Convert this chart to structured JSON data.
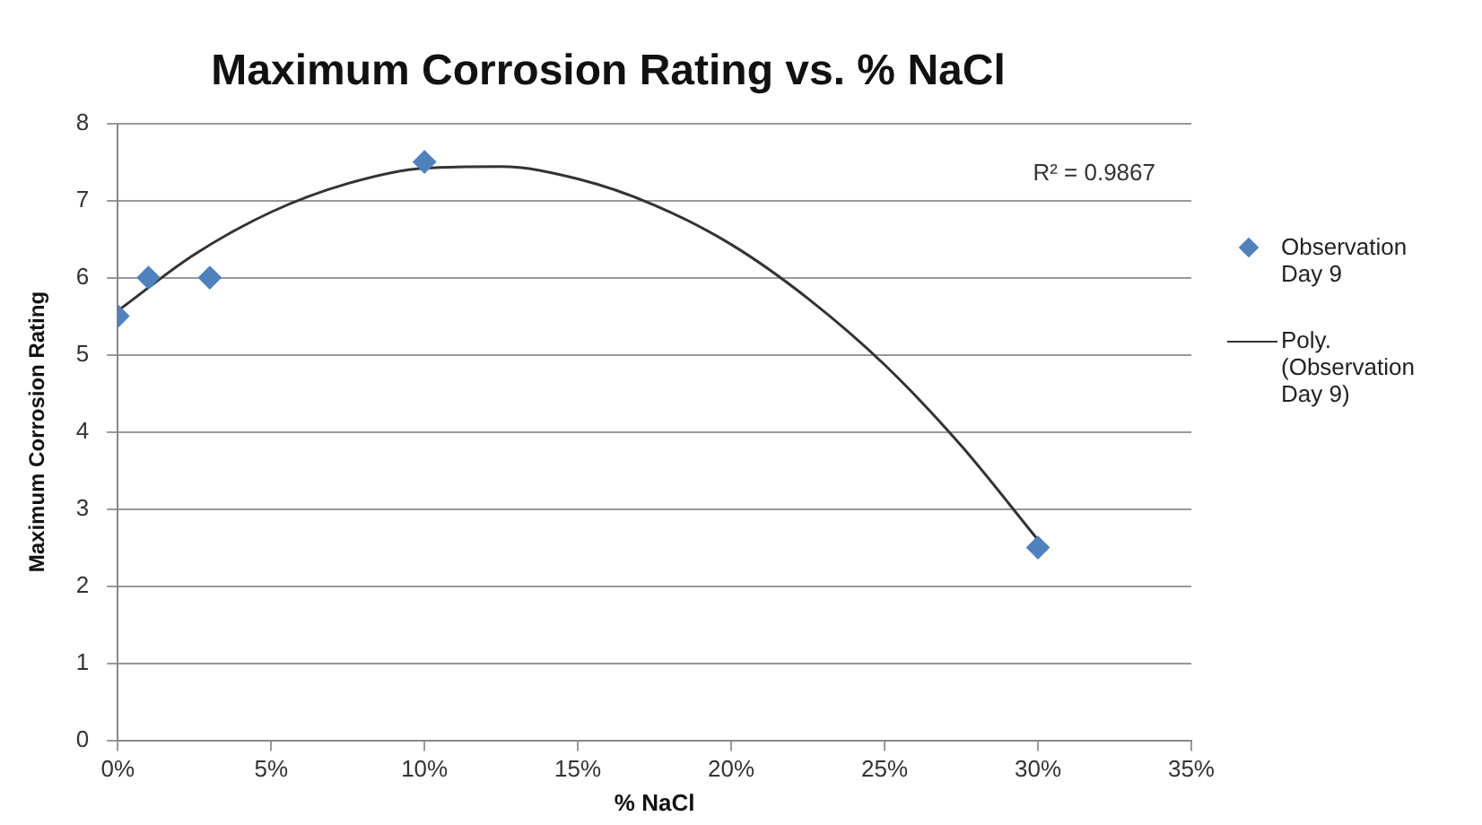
{
  "chart_data": {
    "type": "scatter",
    "title": "Maximum Corrosion Rating vs. % NaCl",
    "xlabel": "% NaCl",
    "ylabel": "Maximum Corrosion Rating",
    "xlim": [
      0,
      35
    ],
    "xticks": [
      {
        "value": 0,
        "label": "0%"
      },
      {
        "value": 5,
        "label": "5%"
      },
      {
        "value": 10,
        "label": "10%"
      },
      {
        "value": 15,
        "label": "15%"
      },
      {
        "value": 20,
        "label": "20%"
      },
      {
        "value": 25,
        "label": "25%"
      },
      {
        "value": 30,
        "label": "30%"
      },
      {
        "value": 35,
        "label": "35%"
      }
    ],
    "ylim": [
      0,
      8
    ],
    "yticks": [
      0,
      1,
      2,
      3,
      4,
      5,
      6,
      7,
      8
    ],
    "grid": "y",
    "legend": "right",
    "annotations": [
      "R² = 0.9867"
    ],
    "series": [
      {
        "name": "Observation Day 9",
        "type": "scatter",
        "color": "#4f81bd",
        "marker": "diamond",
        "x": [
          0,
          1,
          3,
          10,
          30
        ],
        "values": [
          5.5,
          6,
          6,
          7.5,
          2.5
        ]
      },
      {
        "name": "Poly. (Observation Day 9)",
        "type": "line",
        "color": "#333333",
        "marker": "none",
        "line_style": "solid",
        "x": [
          0,
          2.5,
          5,
          7.5,
          10,
          12.5,
          15,
          17.5,
          20,
          22.5,
          25,
          27.5,
          30
        ],
        "values": [
          5.57,
          6.3,
          6.85,
          7.22,
          7.42,
          7.44,
          7.28,
          6.94,
          6.43,
          5.73,
          4.87,
          3.82,
          2.6
        ]
      }
    ]
  }
}
